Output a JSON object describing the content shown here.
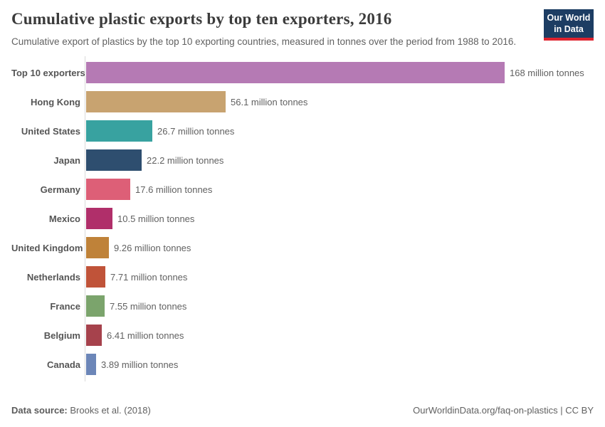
{
  "header": {
    "title": "Cumulative plastic exports by top ten exporters, 2016",
    "subtitle": "Cumulative export of plastics by the top 10 exporting countries, measured in tonnes over the period from 1988 to 2016.",
    "logo": {
      "line1": "Our World",
      "line2": "in Data",
      "bg_color": "#1d3d63",
      "accent_color": "#e0232e"
    }
  },
  "chart_data": {
    "type": "bar",
    "orientation": "horizontal",
    "unit": "million tonnes",
    "xlim": [
      0,
      168
    ],
    "grid": false,
    "legend": "none",
    "categories": [
      "Top 10 exporters",
      "Hong Kong",
      "United States",
      "Japan",
      "Germany",
      "Mexico",
      "United Kingdom",
      "Netherlands",
      "France",
      "Belgium",
      "Canada"
    ],
    "values": [
      168,
      56.1,
      26.7,
      22.2,
      17.6,
      10.5,
      9.26,
      7.71,
      7.55,
      6.41,
      3.89
    ],
    "value_labels": [
      "168 million tonnes",
      "56.1 million tonnes",
      "26.7 million tonnes",
      "22.2 million tonnes",
      "17.6 million tonnes",
      "10.5 million tonnes",
      "9.26 million tonnes",
      "7.71 million tonnes",
      "7.55 million tonnes",
      "6.41 million tonnes",
      "3.89 million tonnes"
    ],
    "bar_colors": [
      "#b57ab4",
      "#c8a370",
      "#38a2a0",
      "#2e4e6f",
      "#dd5f77",
      "#b02f6a",
      "#bf8239",
      "#c05339",
      "#7ba46c",
      "#a6424c",
      "#6c86b8"
    ]
  },
  "footer": {
    "source_label": "Data source:",
    "source_value": "Brooks et al. (2018)",
    "credit": "OurWorldinData.org/faq-on-plastics | CC BY"
  }
}
